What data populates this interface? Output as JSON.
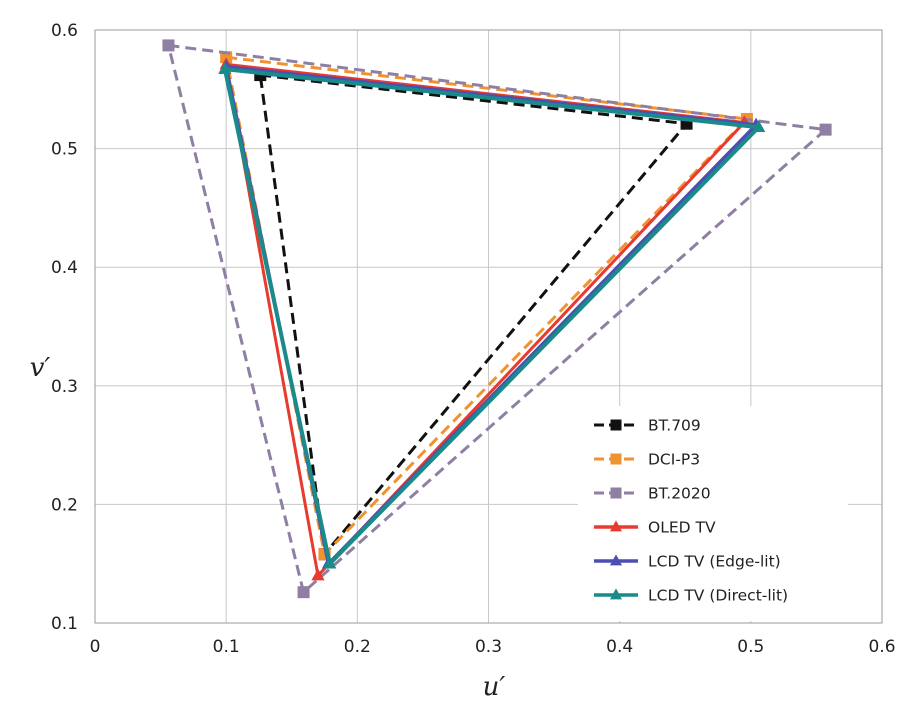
{
  "chart_data": {
    "type": "line",
    "title": "",
    "xlabel": "u′",
    "ylabel": "v′",
    "xlim": [
      0,
      0.6
    ],
    "ylim": [
      0.1,
      0.6
    ],
    "xticks": [
      "0",
      "0.1",
      "0.2",
      "0.3",
      "0.4",
      "0.5",
      "0.6"
    ],
    "yticks": [
      "0.1",
      "0.2",
      "0.3",
      "0.4",
      "0.5",
      "0.6"
    ],
    "grid": true,
    "legend_position": "bottom-right",
    "series": [
      {
        "name": "BT.709",
        "color": "#111111",
        "style": "dashed",
        "marker": "square",
        "points": [
          [
            0.126,
            0.562
          ],
          [
            0.451,
            0.521
          ],
          [
            0.175,
            0.158
          ],
          [
            0.126,
            0.562
          ]
        ]
      },
      {
        "name": "DCI-P3",
        "color": "#f0922e",
        "style": "dashed",
        "marker": "square",
        "points": [
          [
            0.1,
            0.577
          ],
          [
            0.497,
            0.525
          ],
          [
            0.175,
            0.158
          ],
          [
            0.1,
            0.577
          ]
        ]
      },
      {
        "name": "BT.2020",
        "color": "#8f7fa3",
        "style": "dashed",
        "marker": "square",
        "points": [
          [
            0.056,
            0.587
          ],
          [
            0.557,
            0.516
          ],
          [
            0.159,
            0.126
          ],
          [
            0.056,
            0.587
          ]
        ]
      },
      {
        "name": "OLED TV",
        "color": "#e83a2d",
        "style": "solid",
        "marker": "triangle",
        "points": [
          [
            0.1,
            0.571
          ],
          [
            0.495,
            0.522
          ],
          [
            0.17,
            0.14
          ],
          [
            0.1,
            0.571
          ]
        ]
      },
      {
        "name": "LCD TV (Edge-lit)",
        "color": "#4d4fb0",
        "style": "solid",
        "marker": "triangle",
        "points": [
          [
            0.1,
            0.569
          ],
          [
            0.504,
            0.52
          ],
          [
            0.178,
            0.15
          ],
          [
            0.1,
            0.569
          ]
        ]
      },
      {
        "name": "LCD TV (Direct-lit)",
        "color": "#1a8a8a",
        "style": "solid",
        "marker": "triangle",
        "points": [
          [
            0.099,
            0.567
          ],
          [
            0.506,
            0.518
          ],
          [
            0.179,
            0.15
          ],
          [
            0.099,
            0.567
          ]
        ]
      }
    ]
  }
}
